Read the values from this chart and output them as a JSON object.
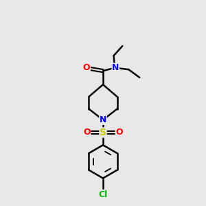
{
  "background_color": "#e8e8e8",
  "atom_colors": {
    "C": "#000000",
    "N": "#0000ff",
    "O": "#ff0000",
    "S": "#cccc00",
    "Cl": "#00bb00"
  },
  "bond_color": "#000000",
  "bond_width": 1.8,
  "font_size_atom": 8.5,
  "fig_size": [
    3.0,
    3.0
  ],
  "dpi": 100
}
